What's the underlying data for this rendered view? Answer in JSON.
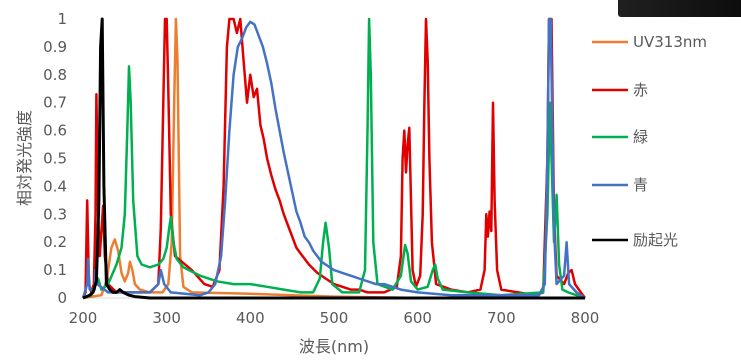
{
  "chart_data": {
    "type": "line",
    "title": "",
    "xlabel": "波長(nm)",
    "ylabel": "相対発光強度",
    "xlim": [
      200,
      800
    ],
    "ylim": [
      0,
      1
    ],
    "xticks": [
      "200",
      "300",
      "400",
      "500",
      "600",
      "700",
      "800"
    ],
    "yticks": [
      "0",
      "0.1",
      "0.2",
      "0.3",
      "0.4",
      "0.5",
      "0.6",
      "0.7",
      "0.8",
      "0.9",
      "1"
    ],
    "grid": false,
    "legend_position": "right",
    "series": [
      {
        "name": "UV313nm",
        "color": "#ED7D31",
        "points": [
          [
            200,
            0
          ],
          [
            222,
            0.01
          ],
          [
            228,
            0.06
          ],
          [
            234,
            0.18
          ],
          [
            238,
            0.21
          ],
          [
            242,
            0.17
          ],
          [
            246,
            0.09
          ],
          [
            250,
            0.06
          ],
          [
            254,
            0.09
          ],
          [
            256,
            0.13
          ],
          [
            259,
            0.1
          ],
          [
            262,
            0.05
          ],
          [
            268,
            0.03
          ],
          [
            280,
            0.02
          ],
          [
            295,
            0.02
          ],
          [
            302,
            0.05
          ],
          [
            306,
            0.2
          ],
          [
            309,
            0.7
          ],
          [
            311,
            1.0
          ],
          [
            313,
            0.85
          ],
          [
            316,
            0.15
          ],
          [
            320,
            0.04
          ],
          [
            330,
            0.02
          ],
          [
            400,
            0.015
          ],
          [
            450,
            0.01
          ],
          [
            500,
            0.005
          ],
          [
            560,
            0.002
          ],
          [
            600,
            0
          ]
        ]
      },
      {
        "name": "赤",
        "color": "#E00000",
        "points": [
          [
            200,
            0
          ],
          [
            203,
            0.02
          ],
          [
            205,
            0.35
          ],
          [
            207,
            0.05
          ],
          [
            210,
            0.02
          ],
          [
            213,
            0.05
          ],
          [
            215,
            0.3
          ],
          [
            216,
            0.73
          ],
          [
            218,
            0.3
          ],
          [
            220,
            0.15
          ],
          [
            224,
            0.33
          ],
          [
            226,
            0.15
          ],
          [
            230,
            0.05
          ],
          [
            240,
            0.02
          ],
          [
            280,
            0.02
          ],
          [
            290,
            0.05
          ],
          [
            293,
            0.25
          ],
          [
            296,
            0.7
          ],
          [
            298,
            1.0
          ],
          [
            300,
            1.0
          ],
          [
            302,
            0.75
          ],
          [
            305,
            0.3
          ],
          [
            310,
            0.15
          ],
          [
            330,
            0.1
          ],
          [
            345,
            0.05
          ],
          [
            355,
            0.04
          ],
          [
            363,
            0.1
          ],
          [
            368,
            0.4
          ],
          [
            372,
            0.9
          ],
          [
            375,
            1.0
          ],
          [
            380,
            1.0
          ],
          [
            384,
            0.95
          ],
          [
            388,
            1.0
          ],
          [
            392,
            0.85
          ],
          [
            396,
            0.7
          ],
          [
            400,
            0.8
          ],
          [
            404,
            0.72
          ],
          [
            408,
            0.75
          ],
          [
            412,
            0.62
          ],
          [
            416,
            0.57
          ],
          [
            420,
            0.5
          ],
          [
            425,
            0.44
          ],
          [
            430,
            0.39
          ],
          [
            435,
            0.35
          ],
          [
            440,
            0.3
          ],
          [
            445,
            0.26
          ],
          [
            450,
            0.22
          ],
          [
            455,
            0.18
          ],
          [
            460,
            0.16
          ],
          [
            465,
            0.14
          ],
          [
            470,
            0.12
          ],
          [
            480,
            0.09
          ],
          [
            490,
            0.07
          ],
          [
            500,
            0.05
          ],
          [
            510,
            0.04
          ],
          [
            520,
            0.03
          ],
          [
            530,
            0.03
          ],
          [
            540,
            0.02
          ],
          [
            560,
            0.02
          ],
          [
            575,
            0.04
          ],
          [
            580,
            0.15
          ],
          [
            582,
            0.5
          ],
          [
            584,
            0.6
          ],
          [
            586,
            0.45
          ],
          [
            588,
            0.55
          ],
          [
            590,
            0.61
          ],
          [
            592,
            0.35
          ],
          [
            594,
            0.1
          ],
          [
            598,
            0.04
          ],
          [
            603,
            0.08
          ],
          [
            606,
            0.3
          ],
          [
            608,
            0.7
          ],
          [
            610,
            1.0
          ],
          [
            612,
            0.85
          ],
          [
            614,
            0.5
          ],
          [
            617,
            0.2
          ],
          [
            622,
            0.05
          ],
          [
            640,
            0.03
          ],
          [
            660,
            0.02
          ],
          [
            675,
            0.03
          ],
          [
            680,
            0.1
          ],
          [
            682,
            0.3
          ],
          [
            684,
            0.22
          ],
          [
            686,
            0.31
          ],
          [
            688,
            0.24
          ],
          [
            690,
            0.7
          ],
          [
            692,
            0.35
          ],
          [
            695,
            0.1
          ],
          [
            700,
            0.03
          ],
          [
            720,
            0.02
          ],
          [
            740,
            0.01
          ],
          [
            750,
            0.02
          ],
          [
            755,
            0.5
          ],
          [
            757,
            1.0
          ],
          [
            760,
            1.0
          ],
          [
            763,
            0.3
          ],
          [
            766,
            0.08
          ],
          [
            775,
            0.05
          ],
          [
            780,
            0.09
          ],
          [
            784,
            0.1
          ],
          [
            788,
            0.05
          ],
          [
            795,
            0.02
          ],
          [
            800,
            0
          ]
        ]
      },
      {
        "name": "緑",
        "color": "#00B050",
        "points": [
          [
            200,
            0
          ],
          [
            210,
            0.01
          ],
          [
            215,
            0.05
          ],
          [
            218,
            0.07
          ],
          [
            222,
            0.03
          ],
          [
            230,
            0.05
          ],
          [
            240,
            0.12
          ],
          [
            246,
            0.18
          ],
          [
            250,
            0.3
          ],
          [
            253,
            0.6
          ],
          [
            255,
            0.83
          ],
          [
            257,
            0.7
          ],
          [
            260,
            0.35
          ],
          [
            265,
            0.15
          ],
          [
            270,
            0.12
          ],
          [
            280,
            0.11
          ],
          [
            290,
            0.12
          ],
          [
            296,
            0.14
          ],
          [
            300,
            0.18
          ],
          [
            303,
            0.25
          ],
          [
            305,
            0.29
          ],
          [
            308,
            0.2
          ],
          [
            312,
            0.14
          ],
          [
            320,
            0.11
          ],
          [
            340,
            0.08
          ],
          [
            360,
            0.06
          ],
          [
            380,
            0.05
          ],
          [
            400,
            0.05
          ],
          [
            420,
            0.04
          ],
          [
            440,
            0.03
          ],
          [
            460,
            0.02
          ],
          [
            475,
            0.02
          ],
          [
            483,
            0.07
          ],
          [
            487,
            0.2
          ],
          [
            490,
            0.27
          ],
          [
            494,
            0.18
          ],
          [
            498,
            0.05
          ],
          [
            510,
            0.02
          ],
          [
            530,
            0.02
          ],
          [
            537,
            0.1
          ],
          [
            540,
            0.6
          ],
          [
            542,
            1.0
          ],
          [
            544,
            0.8
          ],
          [
            547,
            0.2
          ],
          [
            552,
            0.05
          ],
          [
            570,
            0.03
          ],
          [
            580,
            0.08
          ],
          [
            585,
            0.19
          ],
          [
            588,
            0.16
          ],
          [
            592,
            0.06
          ],
          [
            600,
            0.03
          ],
          [
            612,
            0.04
          ],
          [
            618,
            0.1
          ],
          [
            621,
            0.12
          ],
          [
            624,
            0.07
          ],
          [
            630,
            0.03
          ],
          [
            660,
            0.02
          ],
          [
            700,
            0.01
          ],
          [
            750,
            0.02
          ],
          [
            755,
            0.3
          ],
          [
            758,
            0.7
          ],
          [
            760,
            0.5
          ],
          [
            763,
            0.2
          ],
          [
            766,
            0.37
          ],
          [
            769,
            0.12
          ],
          [
            773,
            0.03
          ],
          [
            780,
            0.02
          ],
          [
            800,
            0
          ]
        ]
      },
      {
        "name": "青",
        "color": "#4472C4",
        "points": [
          [
            200,
            0
          ],
          [
            205,
            0.05
          ],
          [
            206,
            0.14
          ],
          [
            208,
            0.03
          ],
          [
            214,
            0.03
          ],
          [
            215,
            0.1
          ],
          [
            217,
            0.05
          ],
          [
            230,
            0.02
          ],
          [
            280,
            0.02
          ],
          [
            290,
            0.05
          ],
          [
            293,
            0.1
          ],
          [
            297,
            0.05
          ],
          [
            305,
            0.02
          ],
          [
            340,
            0.01
          ],
          [
            350,
            0.02
          ],
          [
            358,
            0.05
          ],
          [
            365,
            0.15
          ],
          [
            370,
            0.35
          ],
          [
            375,
            0.6
          ],
          [
            380,
            0.8
          ],
          [
            385,
            0.9
          ],
          [
            390,
            0.93
          ],
          [
            395,
            0.97
          ],
          [
            400,
            0.99
          ],
          [
            405,
            0.98
          ],
          [
            410,
            0.94
          ],
          [
            415,
            0.9
          ],
          [
            420,
            0.84
          ],
          [
            425,
            0.77
          ],
          [
            430,
            0.68
          ],
          [
            435,
            0.6
          ],
          [
            440,
            0.52
          ],
          [
            445,
            0.45
          ],
          [
            450,
            0.38
          ],
          [
            455,
            0.31
          ],
          [
            460,
            0.27
          ],
          [
            465,
            0.22
          ],
          [
            470,
            0.2
          ],
          [
            475,
            0.17
          ],
          [
            480,
            0.15
          ],
          [
            485,
            0.13
          ],
          [
            490,
            0.12
          ],
          [
            495,
            0.11
          ],
          [
            500,
            0.1
          ],
          [
            510,
            0.09
          ],
          [
            520,
            0.08
          ],
          [
            530,
            0.07
          ],
          [
            540,
            0.06
          ],
          [
            550,
            0.05
          ],
          [
            560,
            0.05
          ],
          [
            570,
            0.04
          ],
          [
            580,
            0.03
          ],
          [
            600,
            0.02
          ],
          [
            640,
            0.01
          ],
          [
            700,
            0.01
          ],
          [
            745,
            0.01
          ],
          [
            752,
            0.05
          ],
          [
            755,
            0.5
          ],
          [
            757,
            1.0
          ],
          [
            759,
            1.0
          ],
          [
            761,
            0.6
          ],
          [
            763,
            0.25
          ],
          [
            766,
            0.05
          ],
          [
            775,
            0.08
          ],
          [
            778,
            0.2
          ],
          [
            781,
            0.05
          ],
          [
            790,
            0.02
          ],
          [
            800,
            0
          ]
        ]
      },
      {
        "name": "励起光",
        "color": "#000000",
        "points": [
          [
            200,
            0
          ],
          [
            208,
            0.01
          ],
          [
            212,
            0.02
          ],
          [
            216,
            0.06
          ],
          [
            219,
            0.35
          ],
          [
            221,
            0.9
          ],
          [
            223,
            1.0
          ],
          [
            225,
            0.4
          ],
          [
            228,
            0.05
          ],
          [
            232,
            0.03
          ],
          [
            236,
            0.02
          ],
          [
            240,
            0.02
          ],
          [
            244,
            0.03
          ],
          [
            248,
            0.02
          ],
          [
            255,
            0.01
          ],
          [
            262,
            0.005
          ],
          [
            280,
            0
          ],
          [
            800,
            0
          ]
        ]
      }
    ]
  }
}
